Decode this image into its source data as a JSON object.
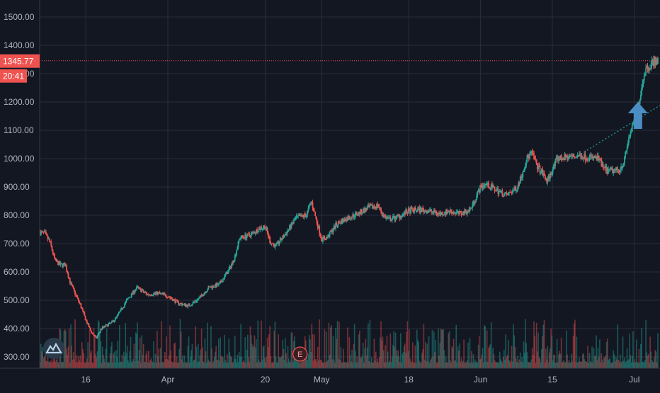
{
  "colors": {
    "background": "#131722",
    "grid": "#2a2e39",
    "axis_text": "#b2b5be",
    "up": "#26a69a",
    "down": "#ef5350",
    "price_line": "#ef5350",
    "price_label_bg": "#ef5350",
    "trend_line": "#26a69a",
    "arrow": "#4a8ec4",
    "logo_bg": "#2a3a4a",
    "logo_fg": "#b9d3e8",
    "event_border": "#ef5350"
  },
  "current_price": {
    "value": 1345.77,
    "label": "1345.77",
    "countdown": "20:41"
  },
  "icons": {
    "logo": "tradingview-logo-icon",
    "event_marker_letter": "E",
    "arrow": "up-arrow-icon"
  },
  "chart_data": {
    "type": "candlestick",
    "title": "",
    "xlabel": "",
    "ylabel": "",
    "grid": true,
    "y_axis_side": "left",
    "ylim": [
      260,
      1560
    ],
    "y_ticks": [
      {
        "value": 300,
        "label": "300.00"
      },
      {
        "value": 400,
        "label": "400.00"
      },
      {
        "value": 500,
        "label": "500.00"
      },
      {
        "value": 600,
        "label": "600.00"
      },
      {
        "value": 700,
        "label": "700.00"
      },
      {
        "value": 800,
        "label": "800.00"
      },
      {
        "value": 900,
        "label": "900.00"
      },
      {
        "value": 1000,
        "label": "1000.00"
      },
      {
        "value": 1100,
        "label": "1100.00"
      },
      {
        "value": 1200,
        "label": "1200.00"
      },
      {
        "value": 1300,
        "label": "1300.00"
      },
      {
        "value": 1400,
        "label": "1400.00"
      },
      {
        "value": 1500,
        "label": "1500.00"
      }
    ],
    "x_range": [
      "2020-03-07",
      "2020-07-06"
    ],
    "x_ticks": [
      {
        "date": "2020-03-16",
        "label": "16"
      },
      {
        "date": "2020-04-01",
        "label": "Apr"
      },
      {
        "date": "2020-04-20",
        "label": "20"
      },
      {
        "date": "2020-05-01",
        "label": "May"
      },
      {
        "date": "2020-05-18",
        "label": "18"
      },
      {
        "date": "2020-06-01",
        "label": "Jun"
      },
      {
        "date": "2020-06-15",
        "label": "15"
      },
      {
        "date": "2020-07-01",
        "label": "Jul"
      }
    ],
    "price_path": [
      [
        "2020-03-07",
        740
      ],
      [
        "2020-03-08",
        735
      ],
      [
        "2020-03-09",
        705
      ],
      [
        "2020-03-10",
        640
      ],
      [
        "2020-03-11",
        625
      ],
      [
        "2020-03-12",
        625
      ],
      [
        "2020-03-13",
        560
      ],
      [
        "2020-03-14",
        520
      ],
      [
        "2020-03-15",
        480
      ],
      [
        "2020-03-16",
        430
      ],
      [
        "2020-03-17",
        390
      ],
      [
        "2020-03-18",
        365
      ],
      [
        "2020-03-19",
        400
      ],
      [
        "2020-03-20",
        410
      ],
      [
        "2020-03-21",
        420
      ],
      [
        "2020-03-22",
        440
      ],
      [
        "2020-03-24",
        500
      ],
      [
        "2020-03-26",
        545
      ],
      [
        "2020-03-28",
        520
      ],
      [
        "2020-03-30",
        525
      ],
      [
        "2020-04-01",
        515
      ],
      [
        "2020-04-03",
        490
      ],
      [
        "2020-04-05",
        480
      ],
      [
        "2020-04-07",
        505
      ],
      [
        "2020-04-09",
        545
      ],
      [
        "2020-04-11",
        555
      ],
      [
        "2020-04-13",
        610
      ],
      [
        "2020-04-14",
        650
      ],
      [
        "2020-04-15",
        720
      ],
      [
        "2020-04-17",
        730
      ],
      [
        "2020-04-19",
        755
      ],
      [
        "2020-04-20",
        760
      ],
      [
        "2020-04-21",
        705
      ],
      [
        "2020-04-22",
        690
      ],
      [
        "2020-04-24",
        735
      ],
      [
        "2020-04-26",
        790
      ],
      [
        "2020-04-28",
        800
      ],
      [
        "2020-04-29",
        850
      ],
      [
        "2020-04-30",
        780
      ],
      [
        "2020-05-01",
        715
      ],
      [
        "2020-05-02",
        720
      ],
      [
        "2020-05-04",
        770
      ],
      [
        "2020-05-06",
        790
      ],
      [
        "2020-05-08",
        805
      ],
      [
        "2020-05-10",
        825
      ],
      [
        "2020-05-12",
        835
      ],
      [
        "2020-05-13",
        800
      ],
      [
        "2020-05-14",
        785
      ],
      [
        "2020-05-16",
        795
      ],
      [
        "2020-05-18",
        815
      ],
      [
        "2020-05-20",
        820
      ],
      [
        "2020-05-22",
        815
      ],
      [
        "2020-05-24",
        805
      ],
      [
        "2020-05-26",
        815
      ],
      [
        "2020-05-28",
        805
      ],
      [
        "2020-05-30",
        820
      ],
      [
        "2020-05-31",
        860
      ],
      [
        "2020-06-01",
        900
      ],
      [
        "2020-06-02",
        910
      ],
      [
        "2020-06-04",
        890
      ],
      [
        "2020-06-06",
        870
      ],
      [
        "2020-06-08",
        895
      ],
      [
        "2020-06-09",
        940
      ],
      [
        "2020-06-10",
        1000
      ],
      [
        "2020-06-11",
        1020
      ],
      [
        "2020-06-12",
        975
      ],
      [
        "2020-06-13",
        950
      ],
      [
        "2020-06-14",
        920
      ],
      [
        "2020-06-15",
        960
      ],
      [
        "2020-06-16",
        1000
      ],
      [
        "2020-06-18",
        1005
      ],
      [
        "2020-06-20",
        1010
      ],
      [
        "2020-06-22",
        1005
      ],
      [
        "2020-06-24",
        1000
      ],
      [
        "2020-06-25",
        965
      ],
      [
        "2020-06-26",
        955
      ],
      [
        "2020-06-28",
        960
      ],
      [
        "2020-06-29",
        990
      ],
      [
        "2020-06-30",
        1080
      ],
      [
        "2020-07-01",
        1130
      ],
      [
        "2020-07-02",
        1210
      ],
      [
        "2020-07-03",
        1310
      ],
      [
        "2020-07-04",
        1330
      ],
      [
        "2020-07-05",
        1345.77
      ]
    ],
    "trendline": {
      "from": [
        "2020-06-20",
        1010
      ],
      "to": [
        "2020-07-06",
        1188
      ]
    },
    "up_arrow_marker": {
      "date": "2020-07-01",
      "value": 1140
    },
    "event_marker": {
      "date": "2020-04-29",
      "letter": "E"
    }
  }
}
